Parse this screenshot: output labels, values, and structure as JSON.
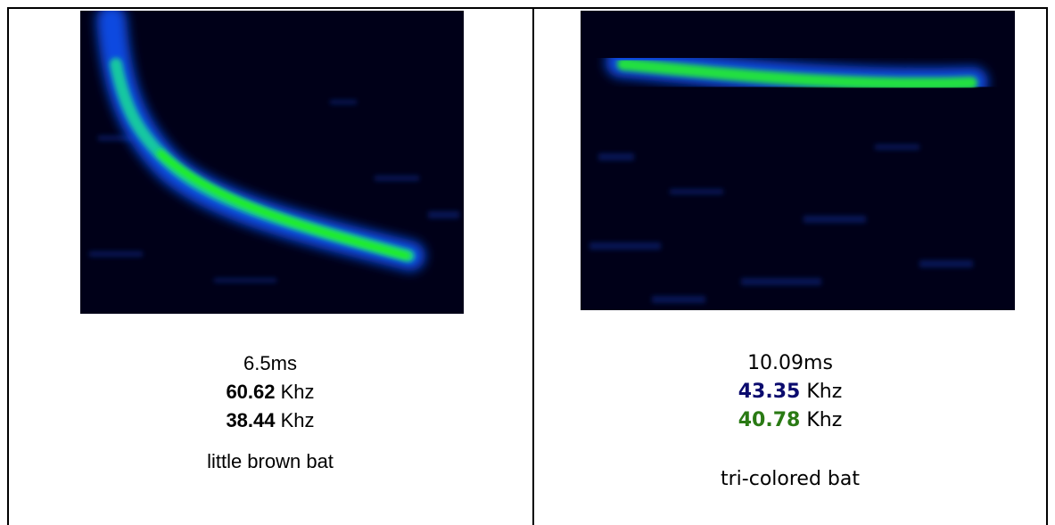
{
  "cells": [
    {
      "duration": "6.5ms",
      "freq_high": {
        "value": "60.62",
        "unit": "Khz"
      },
      "freq_low": {
        "value": "38.44",
        "unit": "Khz"
      },
      "species": "little brown bat"
    },
    {
      "duration": "10.09ms",
      "freq_high": {
        "value": "43.35",
        "unit": "Khz"
      },
      "freq_low": {
        "value": "40.78",
        "unit": "Khz"
      },
      "species": "tri-colored bat"
    }
  ]
}
